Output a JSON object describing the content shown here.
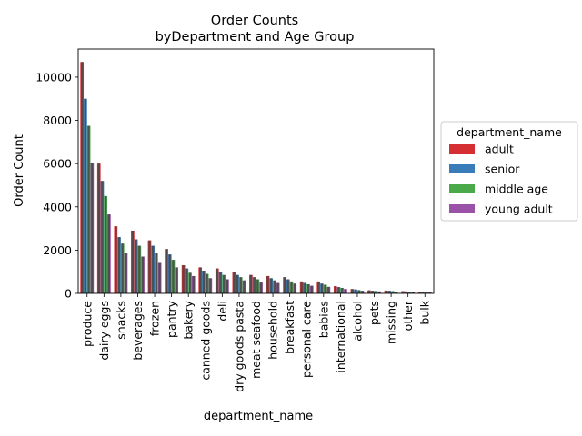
{
  "chart_data": {
    "type": "bar",
    "title_lines": [
      "Order Counts",
      "byDepartment and Age Group"
    ],
    "xlabel": "department_name",
    "ylabel": "Order Count",
    "ylim": [
      0,
      11300
    ],
    "yticks": [
      0,
      2000,
      4000,
      6000,
      8000,
      10000
    ],
    "grid": false,
    "legend_position": "right",
    "legend_title": "department_name",
    "categories": [
      "produce",
      "dairy eggs",
      "snacks",
      "beverages",
      "frozen",
      "pantry",
      "bakery",
      "canned goods",
      "deli",
      "dry goods pasta",
      "meat seafood",
      "household",
      "breakfast",
      "personal care",
      "babies",
      "international",
      "alcohol",
      "pets",
      "missing",
      "other",
      "bulk"
    ],
    "series": [
      {
        "name": "adult",
        "color": "#d62f33",
        "values": [
          10700,
          6000,
          3100,
          2900,
          2450,
          2050,
          1300,
          1200,
          1150,
          1000,
          850,
          800,
          750,
          550,
          550,
          330,
          200,
          140,
          130,
          100,
          80
        ]
      },
      {
        "name": "senior",
        "color": "#3a7cb8",
        "values": [
          9000,
          5200,
          2600,
          2500,
          2200,
          1800,
          1150,
          1050,
          1000,
          850,
          750,
          700,
          650,
          480,
          450,
          290,
          180,
          120,
          120,
          90,
          70
        ]
      },
      {
        "name": "middle age",
        "color": "#4aaa4a",
        "values": [
          7750,
          4500,
          2300,
          2200,
          1850,
          1550,
          950,
          900,
          850,
          750,
          650,
          600,
          550,
          420,
          400,
          250,
          150,
          110,
          100,
          80,
          60
        ]
      },
      {
        "name": "young adult",
        "color": "#9a52a6",
        "values": [
          6050,
          3650,
          1850,
          1700,
          1450,
          1200,
          800,
          700,
          650,
          600,
          500,
          480,
          450,
          350,
          300,
          200,
          120,
          90,
          80,
          60,
          50
        ]
      }
    ],
    "overlay_color": "#4a4a4a"
  }
}
